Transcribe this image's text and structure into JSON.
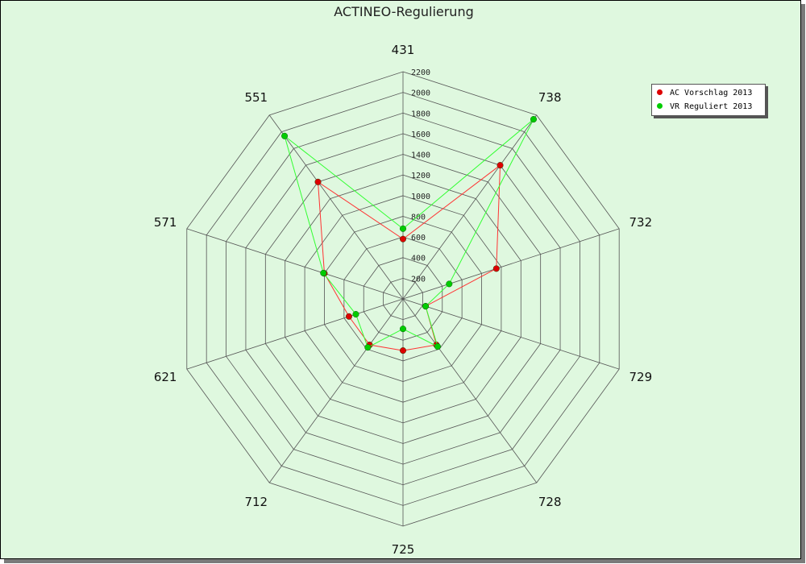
{
  "chart_data": {
    "type": "radar",
    "title": "ACTINEO-Regulierung",
    "categories": [
      "431",
      "738",
      "732",
      "729",
      "728",
      "725",
      "712",
      "621",
      "571",
      "551"
    ],
    "r_ticks": [
      "200",
      "400",
      "600",
      "800",
      "1000",
      "1200",
      "1400",
      "1600",
      "1800",
      "2000",
      "2200"
    ],
    "rlim": [
      0,
      2200
    ],
    "grid": true,
    "legend_position": "top-right",
    "series": [
      {
        "name": "AC Vorschlag 2013",
        "color": "#dd0000",
        "line_color": "#ff3333",
        "values": [
          580,
          1600,
          950,
          230,
          550,
          500,
          550,
          550,
          800,
          1400
        ]
      },
      {
        "name": "VR Reguliert 2013",
        "color": "#00cc00",
        "line_color": "#33ff33",
        "values": [
          680,
          2150,
          470,
          230,
          570,
          290,
          580,
          480,
          810,
          1950
        ]
      }
    ]
  }
}
